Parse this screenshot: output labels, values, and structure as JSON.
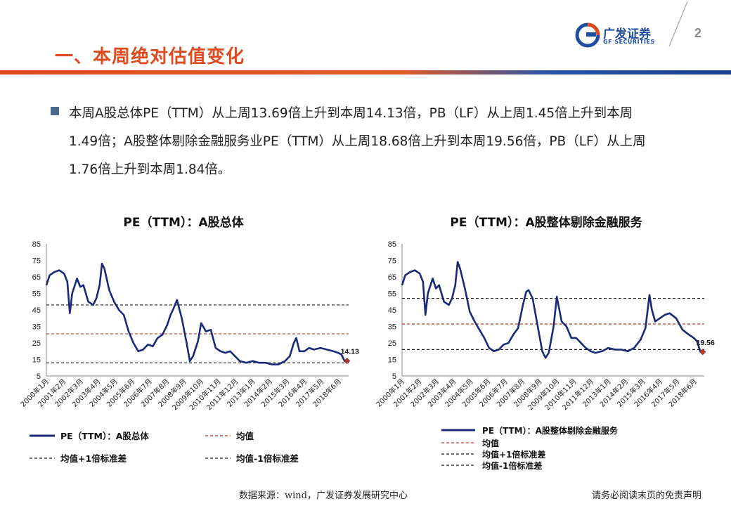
{
  "header": {
    "title": "一、本周绝对估值变化",
    "logo_cn": "广发证券",
    "logo_en": "GF SECURITIES",
    "page_number": "2"
  },
  "summary": {
    "text": "本周A股总体PE（TTM）从上周13.69倍上升到本周14.13倍，PB（LF）从上周1.45倍上升到本周1.49倍；A股整体剔除金融服务业PE（TTM）从上周18.68倍上升到本周19.56倍，PB（LF）从上周1.76倍上升到本周1.84倍。"
  },
  "footer": {
    "source": "数据来源：wind，广发证券发展研究中心",
    "disclaimer": "请务必阅读末页的免责声明"
  },
  "colors": {
    "line": "#1a2a7a",
    "mean": "#c0392b",
    "band": "#222222",
    "marker": "#c0392b",
    "title_accent": "#e04a1f"
  },
  "chart_data": [
    {
      "type": "line",
      "title": "PE（TTM）：A股总体",
      "ylim": [
        5,
        85
      ],
      "yticks": [
        5,
        15,
        25,
        35,
        45,
        55,
        65,
        75,
        85
      ],
      "xlabels": [
        "2000年1月",
        "2001年2月",
        "2002年3月",
        "2003年4月",
        "2004年5月",
        "2005年6月",
        "2006年7月",
        "2007年8月",
        "2008年9月",
        "2009年10月",
        "2010年11月",
        "2011年12月",
        "2013年1月",
        "2014年2月",
        "2015年3月",
        "2016年4月",
        "2017年5月",
        "2018年6月"
      ],
      "xlim": [
        2000.0,
        2018.75
      ],
      "series": [
        {
          "name": "PE（TTM）：A股总体",
          "x": [
            2000.0,
            2000.2,
            2000.5,
            2000.8,
            2001.1,
            2001.3,
            2001.45,
            2001.6,
            2001.9,
            2002.1,
            2002.3,
            2002.6,
            2002.9,
            2003.1,
            2003.3,
            2003.45,
            2003.6,
            2003.9,
            2004.2,
            2004.5,
            2004.8,
            2005.1,
            2005.4,
            2005.7,
            2006.0,
            2006.3,
            2006.6,
            2006.9,
            2007.2,
            2007.5,
            2007.7,
            2007.85,
            2008.1,
            2008.4,
            2008.7,
            2008.9,
            2009.1,
            2009.4,
            2009.6,
            2009.9,
            2010.2,
            2010.5,
            2010.8,
            2011.1,
            2011.4,
            2011.7,
            2012.0,
            2012.4,
            2012.8,
            2013.2,
            2013.6,
            2014.0,
            2014.4,
            2014.8,
            2015.1,
            2015.35,
            2015.5,
            2015.7,
            2016.0,
            2016.3,
            2016.6,
            2017.0,
            2017.4,
            2017.8,
            2018.1,
            2018.3,
            2018.5,
            2018.65
          ],
          "y": [
            60,
            66,
            68,
            69,
            67,
            62,
            43,
            55,
            64,
            59,
            60,
            50,
            48,
            52,
            60,
            73,
            70,
            57,
            50,
            45,
            42,
            32,
            25,
            20,
            21,
            24,
            23,
            28,
            30,
            36,
            42,
            45,
            51,
            40,
            25,
            14,
            17,
            26,
            37,
            32,
            33,
            22,
            20,
            19,
            20,
            17,
            14,
            13,
            14,
            13,
            13,
            12,
            12,
            14,
            17,
            25,
            28,
            20,
            20,
            22,
            21,
            22,
            21,
            20,
            19,
            18,
            14,
            14.13
          ]
        }
      ],
      "mean": 30.5,
      "plus1sd": 48,
      "minus1sd": 13,
      "end_label": "14.13",
      "legend": [
        {
          "label": "PE（TTM）：A股总体",
          "style": "solid"
        },
        {
          "label": "均值",
          "style": "red-dash"
        },
        {
          "label": "均值+1倍标准差",
          "style": "black-dash"
        },
        {
          "label": "均值-1倍标准差",
          "style": "black-dash"
        }
      ]
    },
    {
      "type": "line",
      "title": "PE（TTM）：A股整体剔除金融服务",
      "ylim": [
        5,
        85
      ],
      "yticks": [
        5,
        15,
        25,
        35,
        45,
        55,
        65,
        75,
        85
      ],
      "xlabels": [
        "2000年1月",
        "2001年2月",
        "2002年3月",
        "2003年4月",
        "2004年5月",
        "2005年6月",
        "2006年7月",
        "2007年8月",
        "2008年9月",
        "2009年10月",
        "2010年11月",
        "2011年12月",
        "2013年1月",
        "2014年2月",
        "2015年3月",
        "2016年4月",
        "2017年5月",
        "2018年6月"
      ],
      "xlim": [
        2000.0,
        2018.75
      ],
      "series": [
        {
          "name": "PE（TTM）：A股整体剔除金融服务",
          "x": [
            2000.0,
            2000.2,
            2000.5,
            2000.8,
            2001.1,
            2001.3,
            2001.45,
            2001.6,
            2001.9,
            2002.1,
            2002.3,
            2002.6,
            2002.9,
            2003.1,
            2003.3,
            2003.45,
            2003.6,
            2003.9,
            2004.2,
            2004.5,
            2004.8,
            2005.1,
            2005.4,
            2005.7,
            2006.0,
            2006.3,
            2006.6,
            2006.9,
            2007.2,
            2007.5,
            2007.7,
            2007.85,
            2008.1,
            2008.4,
            2008.7,
            2008.9,
            2009.1,
            2009.4,
            2009.6,
            2009.9,
            2010.2,
            2010.5,
            2010.8,
            2011.1,
            2011.4,
            2011.7,
            2012.0,
            2012.4,
            2012.8,
            2013.2,
            2013.6,
            2014.0,
            2014.4,
            2014.8,
            2015.1,
            2015.35,
            2015.5,
            2015.7,
            2016.0,
            2016.3,
            2016.6,
            2017.0,
            2017.4,
            2017.8,
            2018.1,
            2018.3,
            2018.5,
            2018.65
          ],
          "y": [
            60,
            66,
            68,
            69,
            67,
            62,
            42,
            55,
            64,
            58,
            60,
            50,
            48,
            52,
            60,
            74,
            70,
            58,
            44,
            38,
            33,
            28,
            22,
            20,
            21,
            24,
            25,
            30,
            34,
            48,
            56,
            57,
            52,
            36,
            20,
            16,
            19,
            35,
            53,
            38,
            35,
            28,
            28,
            25,
            22,
            20,
            19,
            20,
            22,
            21,
            21,
            20,
            22,
            27,
            34,
            54,
            45,
            38,
            40,
            42,
            43,
            40,
            33,
            30,
            28,
            26,
            20,
            19.56
          ]
        }
      ],
      "mean": 36.5,
      "plus1sd": 52,
      "minus1sd": 21,
      "end_label": "19.56",
      "legend": [
        {
          "label": "PE（TTM）：A股整体剔除金融服务",
          "style": "solid"
        },
        {
          "label": "均值",
          "style": "red-dash"
        },
        {
          "label": "均值+1倍标准差",
          "style": "black-dash"
        },
        {
          "label": "均值-1倍标准差",
          "style": "black-dash"
        }
      ]
    }
  ]
}
